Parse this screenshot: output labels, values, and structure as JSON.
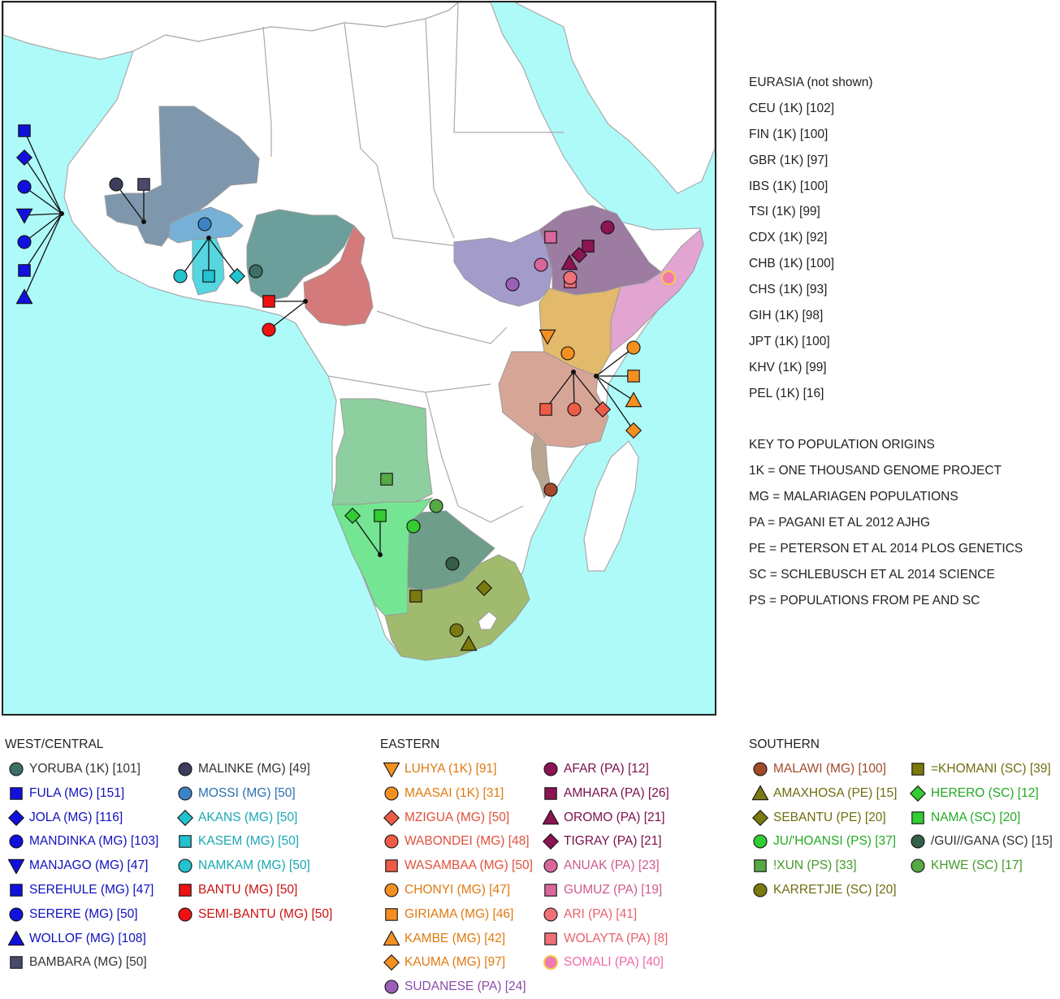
{
  "map": {
    "colors": {
      "ocean": "#aefaf9",
      "land": "#ffffff",
      "border": "#aaaaaa",
      "mali": "#7f97ad",
      "burkina": "#77b0d6",
      "ghana": "#56d6e0",
      "nigeria": "#6c9f9b",
      "cameroon": "#d57a7a",
      "south_sudan": "#a39ccb",
      "ethiopia": "#9c7ca0",
      "somalia": "#e2a5d1",
      "kenya": "#e3b96b",
      "tanzania": "#d7a596",
      "malawi": "#b8a691",
      "angola": "#8ecfa0",
      "namibia": "#74e592",
      "botswana": "#6e9d8a",
      "south_africa": "#a1bb6e"
    }
  },
  "eurasia": {
    "header": "EURASIA (not shown)",
    "items": [
      "CEU (1K) [102]",
      "FIN (1K) [100]",
      "GBR (1K) [97]",
      "IBS (1K) [100]",
      "TSI (1K) [99]",
      "CDX (1K) [92]",
      "CHB (1K) [100]",
      "CHS (1K) [93]",
      "GIH (1K) [98]",
      "JPT (1K) [100]",
      "KHV (1K) [99]",
      "PEL (1K) [16]"
    ]
  },
  "key": {
    "header": "KEY TO POPULATION ORIGINS",
    "items": [
      "1K = ONE THOUSAND GENOME PROJECT",
      "MG = MALARIAGEN POPULATIONS",
      "PA = PAGANI ET AL 2012 AJHG",
      "PE = PETERSON ET AL 2014 PLOS GENETICS",
      "SC = SCHLEBUSCH ET AL 2014 SCIENCE",
      "PS = POPULATIONS FROM PE AND SC"
    ]
  },
  "legend": {
    "west_central": {
      "header": "WEST/CENTRAL",
      "col1": [
        {
          "label": "YORUBA (1K) [101]",
          "shape": "circle",
          "color": "#3d6f66",
          "text_color": "#333333"
        },
        {
          "label": "FULA (MG) [151]",
          "shape": "square",
          "color": "#1111dd",
          "text_color": "#1111bb"
        },
        {
          "label": "JOLA (MG) [116]",
          "shape": "diamond",
          "color": "#1111dd",
          "text_color": "#1111bb"
        },
        {
          "label": "MANDINKA (MG) [103]",
          "shape": "circle",
          "color": "#1111dd",
          "text_color": "#1111bb"
        },
        {
          "label": "MANJAGO (MG) [47]",
          "shape": "triangle-down",
          "color": "#1111dd",
          "text_color": "#1111bb"
        },
        {
          "label": "SEREHULE (MG) [47]",
          "shape": "square",
          "color": "#1111dd",
          "text_color": "#1111bb"
        },
        {
          "label": "SERERE (MG) [50]",
          "shape": "circle",
          "color": "#1111dd",
          "text_color": "#1111bb"
        },
        {
          "label": "WOLLOF (MG) [108]",
          "shape": "triangle-up",
          "color": "#1111dd",
          "text_color": "#1111bb"
        },
        {
          "label": "BAMBARA (MG) [50]",
          "shape": "square",
          "color": "#4a4a6e",
          "text_color": "#333333"
        }
      ],
      "col2": [
        {
          "label": "MALINKE (MG) [49]",
          "shape": "circle",
          "color": "#3d3d5e",
          "text_color": "#333333"
        },
        {
          "label": "MOSSI (MG) [50]",
          "shape": "circle",
          "color": "#3b84c8",
          "text_color": "#2a6fb0"
        },
        {
          "label": "AKANS (MG) [50]",
          "shape": "diamond",
          "color": "#22c3cf",
          "text_color": "#1aa8b4"
        },
        {
          "label": "KASEM (MG) [50]",
          "shape": "square",
          "color": "#22c3cf",
          "text_color": "#1aa8b4"
        },
        {
          "label": "NAMKAM (MG) [50]",
          "shape": "circle",
          "color": "#22c3cf",
          "text_color": "#1aa8b4"
        },
        {
          "label": "BANTU (MG) [50]",
          "shape": "square",
          "color": "#ee1111",
          "text_color": "#cc1111"
        },
        {
          "label": "SEMI-BANTU (MG) [50]",
          "shape": "circle",
          "color": "#ee1111",
          "text_color": "#cc1111"
        }
      ]
    },
    "eastern": {
      "header": "EASTERN",
      "col1": [
        {
          "label": "LUHYA (1K) [91]",
          "shape": "triangle-down",
          "color": "#f39021",
          "text_color": "#e07a10"
        },
        {
          "label": "MAASAI (1K) [31]",
          "shape": "circle",
          "color": "#f39021",
          "text_color": "#e07a10"
        },
        {
          "label": "MZIGUA (MG) [50]",
          "shape": "diamond",
          "color": "#ee5b47",
          "text_color": "#e0503a"
        },
        {
          "label": "WABONDEI (MG) [48]",
          "shape": "circle",
          "color": "#ee5b47",
          "text_color": "#e0503a"
        },
        {
          "label": "WASAMBAA (MG) [50]",
          "shape": "square",
          "color": "#ee5b47",
          "text_color": "#e0503a"
        },
        {
          "label": "CHONYI (MG) [47]",
          "shape": "circle",
          "color": "#f39021",
          "text_color": "#e07a10"
        },
        {
          "label": "GIRIAMA (MG) [46]",
          "shape": "square",
          "color": "#f39021",
          "text_color": "#e07a10"
        },
        {
          "label": "KAMBE (MG) [42]",
          "shape": "triangle-up",
          "color": "#f39021",
          "text_color": "#e07a10"
        },
        {
          "label": "KAUMA (MG) [97]",
          "shape": "diamond",
          "color": "#f39021",
          "text_color": "#e07a10"
        },
        {
          "label": "SUDANESE (PA) [24]",
          "shape": "circle",
          "color": "#9b5fb8",
          "text_color": "#8a4ca8"
        }
      ],
      "col2": [
        {
          "label": "AFAR (PA) [12]",
          "shape": "circle",
          "color": "#8d1453",
          "text_color": "#7a1048"
        },
        {
          "label": "AMHARA (PA) [26]",
          "shape": "square",
          "color": "#8d1453",
          "text_color": "#7a1048"
        },
        {
          "label": "OROMO (PA) [21]",
          "shape": "triangle-up",
          "color": "#8d1453",
          "text_color": "#7a1048"
        },
        {
          "label": "TIGRAY (PA) [21]",
          "shape": "diamond",
          "color": "#8d1453",
          "text_color": "#7a1048"
        },
        {
          "label": "ANUAK (PA) [23]",
          "shape": "circle",
          "color": "#d9679b",
          "text_color": "#cc5a8e"
        },
        {
          "label": "GUMUZ (PA) [19]",
          "shape": "square",
          "color": "#d9679b",
          "text_color": "#cc5a8e"
        },
        {
          "label": "ARI (PA) [41]",
          "shape": "circle",
          "color": "#f0707a",
          "text_color": "#e8606b"
        },
        {
          "label": "WOLAYTA (PA) [8]",
          "shape": "square",
          "color": "#f0707a",
          "text_color": "#e8606b"
        },
        {
          "label": "SOMALI (PA) [40]",
          "shape": "circle-ring",
          "color": "#f078b4",
          "text_color": "#ee6aa8"
        }
      ]
    },
    "southern": {
      "header": "SOUTHERN",
      "col1": [
        {
          "label": "MALAWI (MG) [100]",
          "shape": "circle",
          "color": "#a34a2a",
          "text_color": "#a34a2a"
        },
        {
          "label": "AMAXHOSA (PE) [15]",
          "shape": "triangle-up",
          "color": "#7a7a10",
          "text_color": "#6e6e10"
        },
        {
          "label": "SEBANTU (PE) [20]",
          "shape": "diamond",
          "color": "#7a7a10",
          "text_color": "#6e6e10"
        },
        {
          "label": "JU/'HOANSI (PS) [37]",
          "shape": "circle",
          "color": "#33cc33",
          "text_color": "#22aa22"
        },
        {
          "label": "!XUN (PS) [33]",
          "shape": "square",
          "color": "#55aa44",
          "text_color": "#44992a"
        },
        {
          "label": "KARRETJIE (SC) [20]",
          "shape": "circle",
          "color": "#7a7a10",
          "text_color": "#6e6e10"
        }
      ],
      "col2": [
        {
          "label": "=KHOMANI (SC) [39]",
          "shape": "square",
          "color": "#7a7a10",
          "text_color": "#6e6e10"
        },
        {
          "label": "HERERO (SC) [12]",
          "shape": "diamond",
          "color": "#33cc33",
          "text_color": "#22aa22"
        },
        {
          "label": "NAMA (SC) [20]",
          "shape": "square",
          "color": "#33cc33",
          "text_color": "#22aa22"
        },
        {
          "label": "/GUI//GANA (SC) [15]",
          "shape": "circle",
          "color": "#355f48",
          "text_color": "#333333"
        },
        {
          "label": "KHWE (SC) [17]",
          "shape": "circle",
          "color": "#55aa44",
          "text_color": "#44992a"
        }
      ]
    }
  }
}
